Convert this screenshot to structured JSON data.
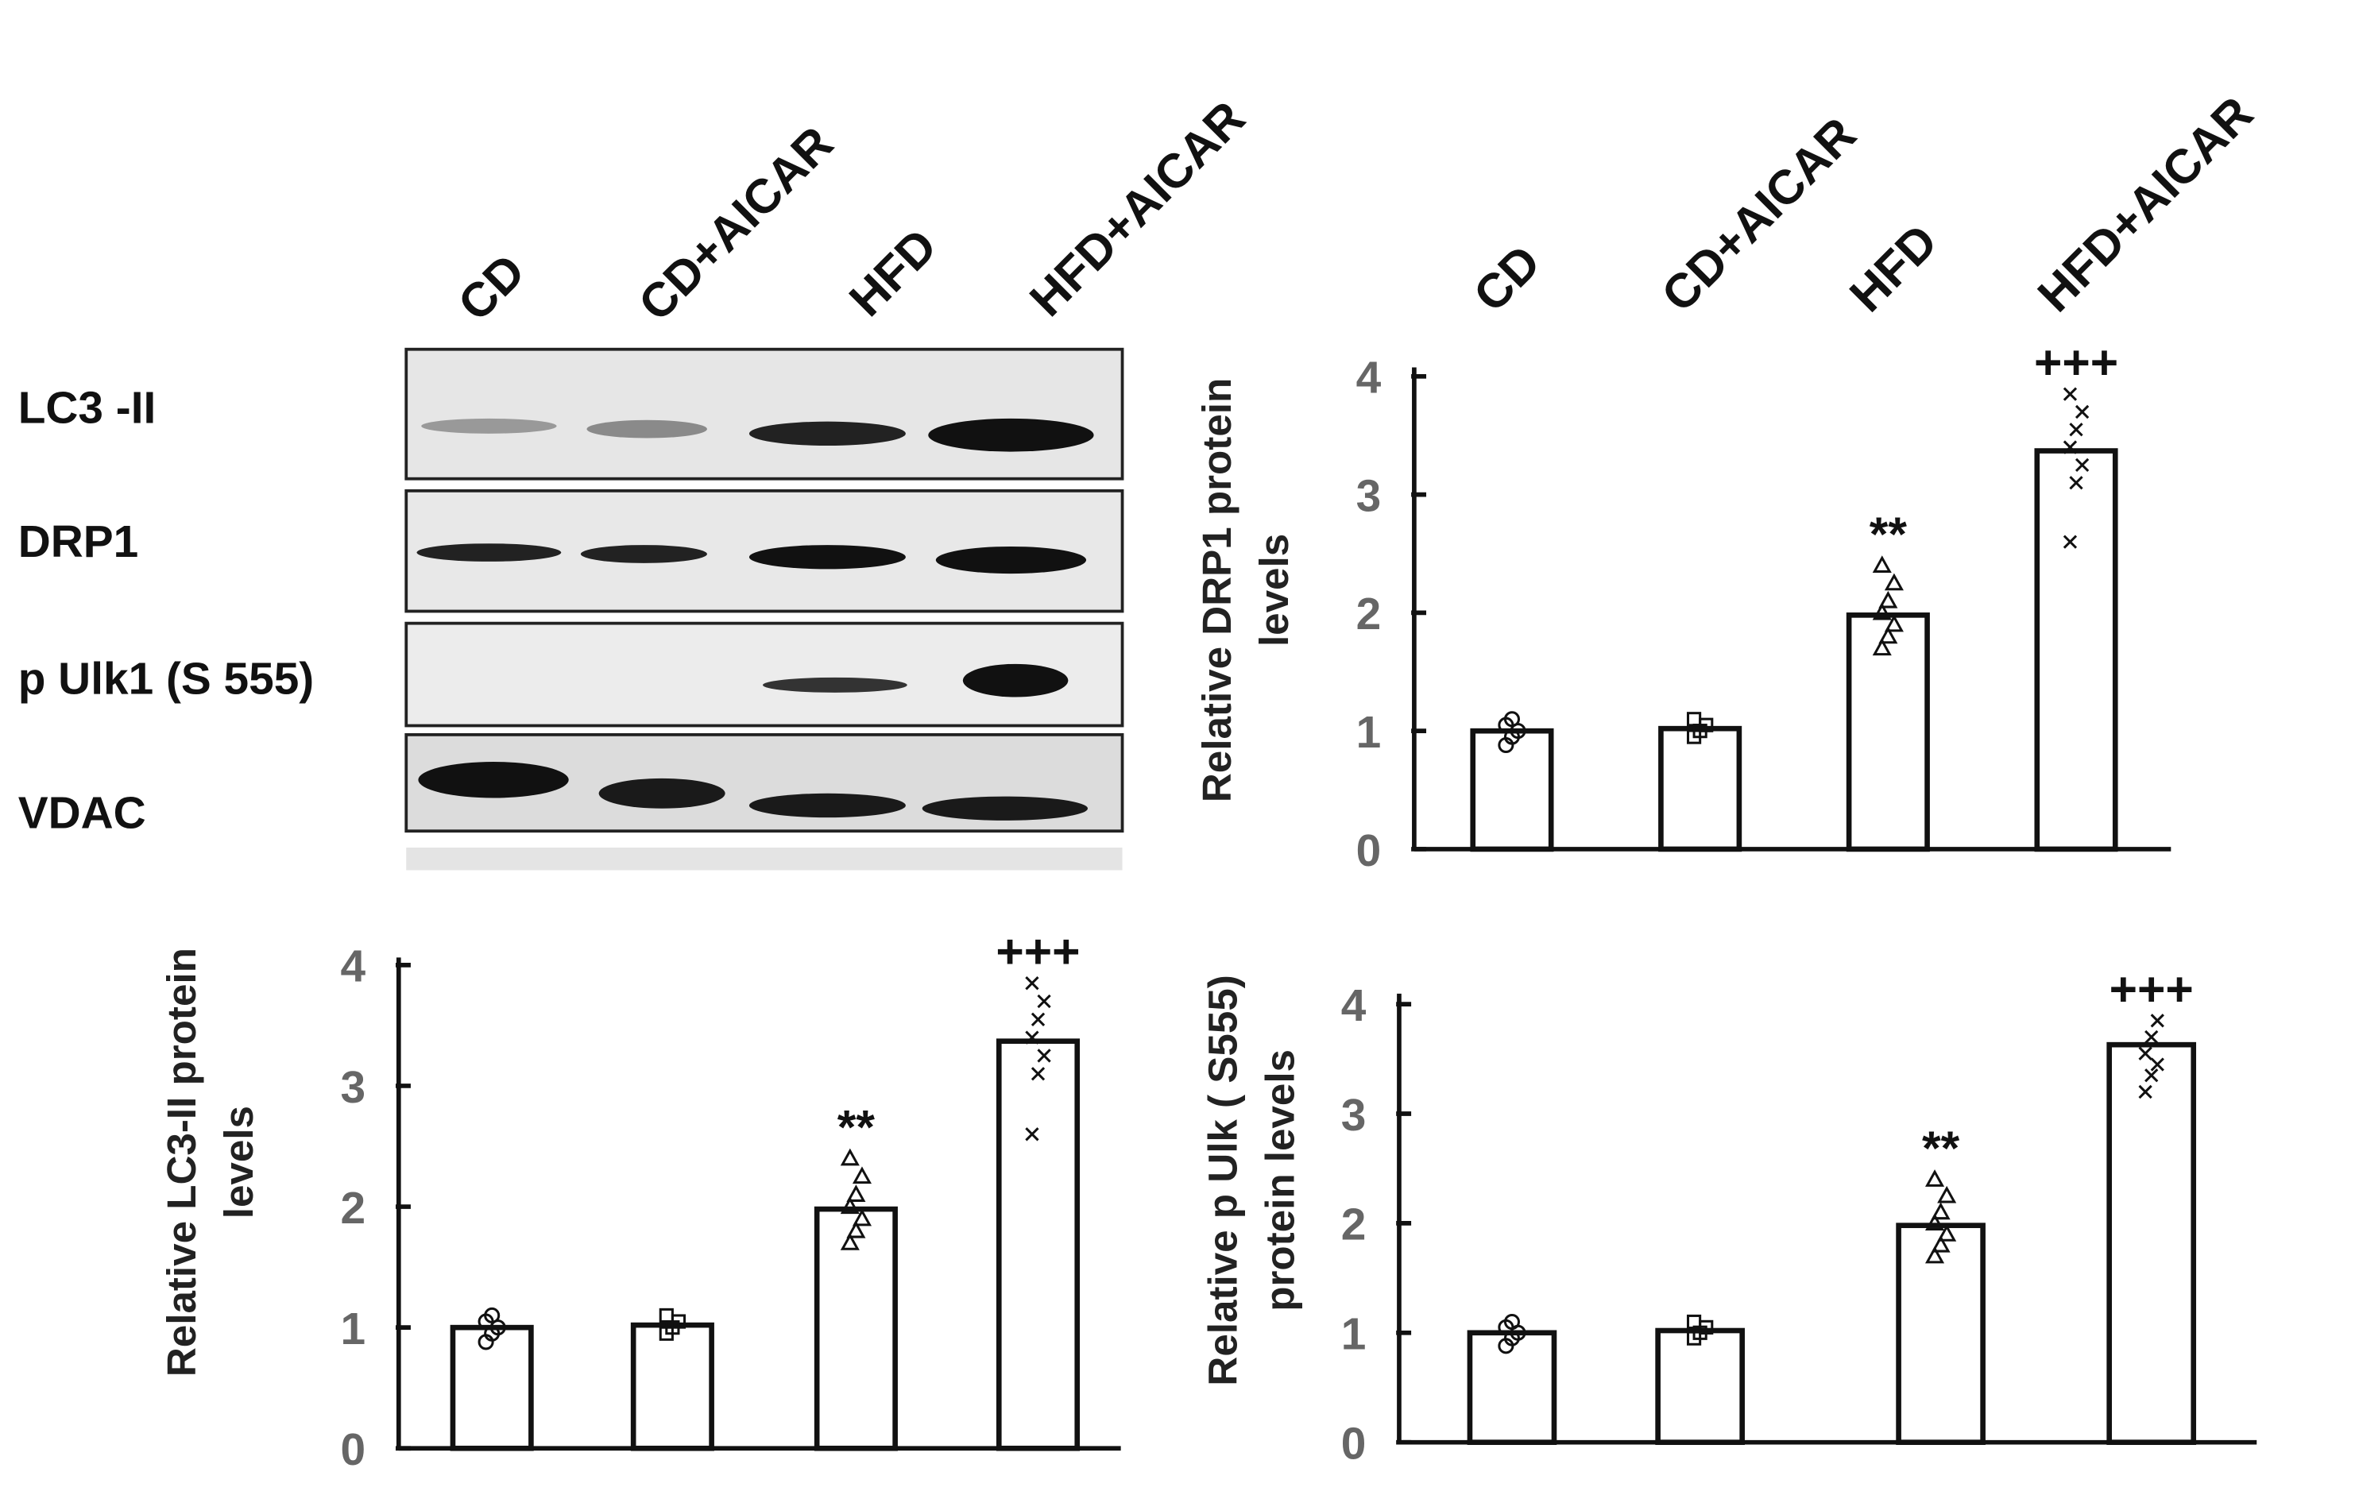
{
  "blot": {
    "lanes": [
      "CD",
      "CD+AICAR",
      "HFD",
      "HFD+AICAR"
    ],
    "rows": [
      "LC3 -II",
      "DRP1",
      "p Ulk1 (S 555)",
      "VDAC"
    ]
  },
  "chart_data": [
    {
      "type": "bar",
      "y_label": [
        "Relative DRP1 protein",
        "levels"
      ],
      "categories": [
        "CD",
        "CD+AICAR",
        "HFD",
        "HFD+AICAR"
      ],
      "values": [
        1.0,
        1.02,
        1.98,
        3.37
      ],
      "color": "#ffffff",
      "significance": [
        null,
        null,
        "**",
        "+++"
      ],
      "markers": [
        "circle",
        "square",
        "triangle",
        "x"
      ],
      "points": [
        [
          0.88,
          0.95,
          1.0,
          1.05,
          1.1
        ],
        [
          0.95,
          1.0,
          1.05,
          1.1
        ],
        [
          1.7,
          1.8,
          1.9,
          2.0,
          2.1,
          2.25,
          2.4
        ],
        [
          2.6,
          3.1,
          3.25,
          3.4,
          3.55,
          3.7,
          3.85
        ]
      ],
      "ylim": [
        0,
        4
      ],
      "yticks": [
        0,
        1,
        2,
        3,
        4
      ]
    },
    {
      "type": "bar",
      "y_label": [
        "Relative LC3-II protein",
        "levels"
      ],
      "categories": [
        null,
        null,
        null,
        null
      ],
      "values": [
        1.0,
        1.02,
        1.98,
        3.37
      ],
      "color": "#ffffff",
      "significance": [
        null,
        null,
        "**",
        "+++"
      ],
      "markers": [
        "circle",
        "square",
        "triangle",
        "x"
      ],
      "points": [
        [
          0.88,
          0.95,
          1.0,
          1.05,
          1.1
        ],
        [
          0.95,
          1.0,
          1.05,
          1.1
        ],
        [
          1.7,
          1.8,
          1.9,
          2.0,
          2.1,
          2.25,
          2.4
        ],
        [
          2.6,
          3.1,
          3.25,
          3.4,
          3.55,
          3.7,
          3.85
        ]
      ],
      "ylim": [
        0,
        4
      ],
      "yticks": [
        0,
        1,
        2,
        3,
        4
      ]
    },
    {
      "type": "bar",
      "y_label": [
        "Relative p Ulk ( S555)",
        "protein levels"
      ],
      "categories": [
        null,
        null,
        null,
        null
      ],
      "values": [
        1.0,
        1.02,
        1.98,
        3.63
      ],
      "color": "#ffffff",
      "significance": [
        null,
        null,
        "**",
        "+++"
      ],
      "markers": [
        "circle",
        "square",
        "triangle",
        "x"
      ],
      "points": [
        [
          0.88,
          0.95,
          1.0,
          1.05,
          1.1
        ],
        [
          0.95,
          1.0,
          1.05,
          1.1
        ],
        [
          1.7,
          1.8,
          1.9,
          2.0,
          2.1,
          2.25,
          2.4
        ],
        [
          3.2,
          3.35,
          3.45,
          3.55,
          3.7,
          3.85
        ]
      ],
      "ylim": [
        0,
        4
      ],
      "yticks": [
        0,
        1,
        2,
        3,
        4
      ]
    }
  ]
}
